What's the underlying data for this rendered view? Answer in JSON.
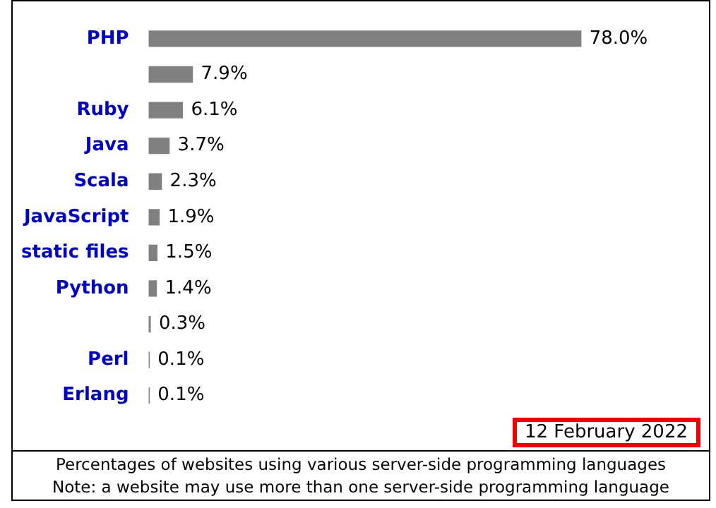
{
  "chart_data": {
    "type": "bar",
    "orientation": "horizontal",
    "categories": [
      "PHP",
      null,
      "Ruby",
      "Java",
      "Scala",
      "JavaScript",
      "static files",
      "Python",
      null,
      "Perl",
      "Erlang"
    ],
    "values": [
      78.0,
      7.9,
      6.1,
      3.7,
      2.3,
      1.9,
      1.5,
      1.4,
      0.3,
      0.1,
      0.1
    ],
    "value_labels": [
      "78.0%",
      "7.9%",
      "6.1%",
      "3.7%",
      "2.3%",
      "1.9%",
      "1.5%",
      "1.4%",
      "0.3%",
      "0.1%",
      "0.1%"
    ],
    "color": "#808080",
    "legend": false,
    "annotations": [
      "12 February 2022",
      "Percentages of websites using various server-side programming languages",
      "Note: a website may use more than one server-side programming language"
    ]
  }
}
